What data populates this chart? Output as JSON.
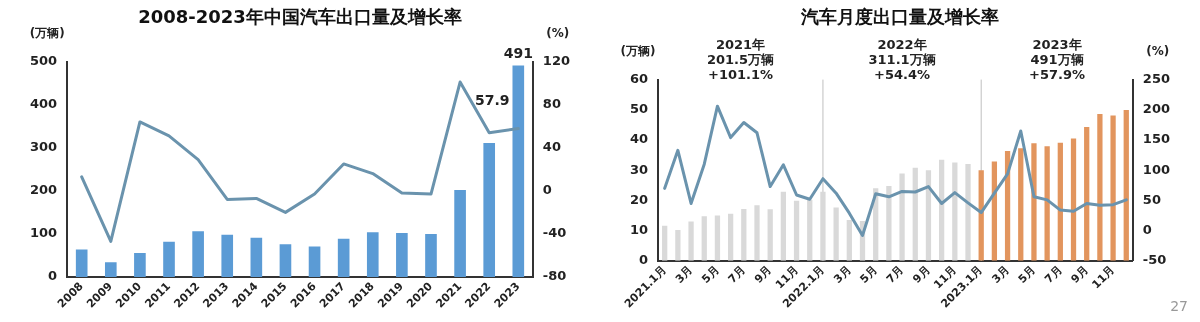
{
  "chart_data": [
    {
      "type": "bar",
      "title": "2008-2023年中国汽车出口量及增长率",
      "ylabel": "(万辆)",
      "y2label": "(%)",
      "categories": [
        "2008",
        "2009",
        "2010",
        "2011",
        "2012",
        "2013",
        "2014",
        "2015",
        "2016",
        "2017",
        "2018",
        "2019",
        "2020",
        "2021",
        "2022",
        "2023"
      ],
      "series": [
        {
          "color": "#5b9bd5",
          "values": [
            64,
            34,
            56,
            82,
            106,
            98,
            91,
            76,
            71,
            89,
            104,
            102,
            100,
            202,
            311,
            491
          ],
          "value_labels": [
            null,
            null,
            null,
            null,
            null,
            null,
            null,
            null,
            null,
            null,
            null,
            null,
            null,
            null,
            null,
            "491"
          ]
        },
        {
          "type": "line",
          "axis": "y2",
          "color": "#6a93ad",
          "values": [
            13,
            -47,
            64,
            51,
            29,
            -8,
            -7,
            -20,
            -3,
            25,
            16,
            -2,
            -3,
            101,
            54,
            57.9
          ],
          "value_labels": [
            null,
            null,
            null,
            null,
            null,
            null,
            null,
            null,
            null,
            null,
            null,
            null,
            null,
            null,
            null,
            "57.9"
          ]
        }
      ],
      "ylim": [
        0,
        500
      ],
      "yticks": [
        0,
        100,
        200,
        300,
        400,
        500
      ],
      "y2lim": [
        -80,
        120
      ],
      "y2ticks": [
        -80,
        -40,
        0,
        40,
        80,
        120
      ],
      "grid": false,
      "legend": false,
      "marker": "none"
    },
    {
      "type": "bar",
      "title": "汽车月度出口量及增长率",
      "ylabel": "(万辆)",
      "y2label": "(%)",
      "categories": [
        "2021.1月",
        null,
        "3月",
        null,
        "5月",
        null,
        "7月",
        null,
        "9月",
        null,
        "11月",
        null,
        "2022.1月",
        null,
        "3月",
        null,
        "5月",
        null,
        "7月",
        null,
        "9月",
        null,
        "11月",
        null,
        "2023.1月",
        null,
        "3月",
        null,
        "5月",
        null,
        "7月",
        null,
        "9月",
        null,
        "11月",
        null
      ],
      "series": [
        {
          "colors": [
            "#d9d9d9",
            "#d9d9d9",
            "#d9d9d9",
            "#d9d9d9",
            "#d9d9d9",
            "#d9d9d9",
            "#d9d9d9",
            "#d9d9d9",
            "#d9d9d9",
            "#d9d9d9",
            "#d9d9d9",
            "#d9d9d9",
            "#d9d9d9",
            "#d9d9d9",
            "#d9d9d9",
            "#d9d9d9",
            "#d9d9d9",
            "#d9d9d9",
            "#d9d9d9",
            "#d9d9d9",
            "#d9d9d9",
            "#d9d9d9",
            "#d9d9d9",
            "#d9d9d9",
            "#e2955e",
            "#e2955e",
            "#e2955e",
            "#e2955e",
            "#e2955e",
            "#e2955e",
            "#e2955e",
            "#e2955e",
            "#e2955e",
            "#e2955e",
            "#e2955e",
            "#e2955e"
          ],
          "values": [
            11.6,
            10.2,
            13,
            14.8,
            15,
            15.6,
            17.2,
            18.4,
            17.1,
            22.9,
            19.9,
            20.2,
            22.9,
            17.7,
            13.5,
            13.2,
            24,
            24.8,
            28.9,
            30.8,
            30,
            33.5,
            32.6,
            32.1,
            30,
            32.9,
            36.4,
            37.3,
            38.9,
            37.9,
            39.1,
            40.5,
            44.3,
            48.6,
            48.1,
            49.9
          ]
        },
        {
          "type": "line",
          "axis": "y2",
          "color": "#6a93ad",
          "values": [
            70,
            133,
            45,
            110,
            206,
            154,
            179,
            162,
            73,
            109,
            59,
            52,
            86,
            62,
            29,
            -8,
            61,
            56,
            65,
            64,
            73,
            45,
            63,
            46,
            30,
            62,
            94,
            165,
            56,
            51,
            34,
            32,
            45,
            42,
            43,
            51
          ]
        }
      ],
      "ylim": [
        0,
        60
      ],
      "yticks": [
        0,
        10,
        20,
        30,
        40,
        50,
        60
      ],
      "y2lim": [
        -50,
        250
      ],
      "y2ticks": [
        -50,
        0,
        50,
        100,
        150,
        200,
        250
      ],
      "ref_lines": [
        {
          "axis": "x",
          "value": "2022.1月",
          "color": "#bfbfbf"
        },
        {
          "axis": "x",
          "value": "2023.1月",
          "color": "#bfbfbf"
        }
      ],
      "annotations": [
        "2021年\n201.5万辆\n+101.1%",
        "2022年\n311.1万辆\n+54.4%",
        "2023年\n491万辆\n+57.9%",
        "27"
      ],
      "grid": false,
      "legend": false,
      "marker": "none"
    }
  ]
}
